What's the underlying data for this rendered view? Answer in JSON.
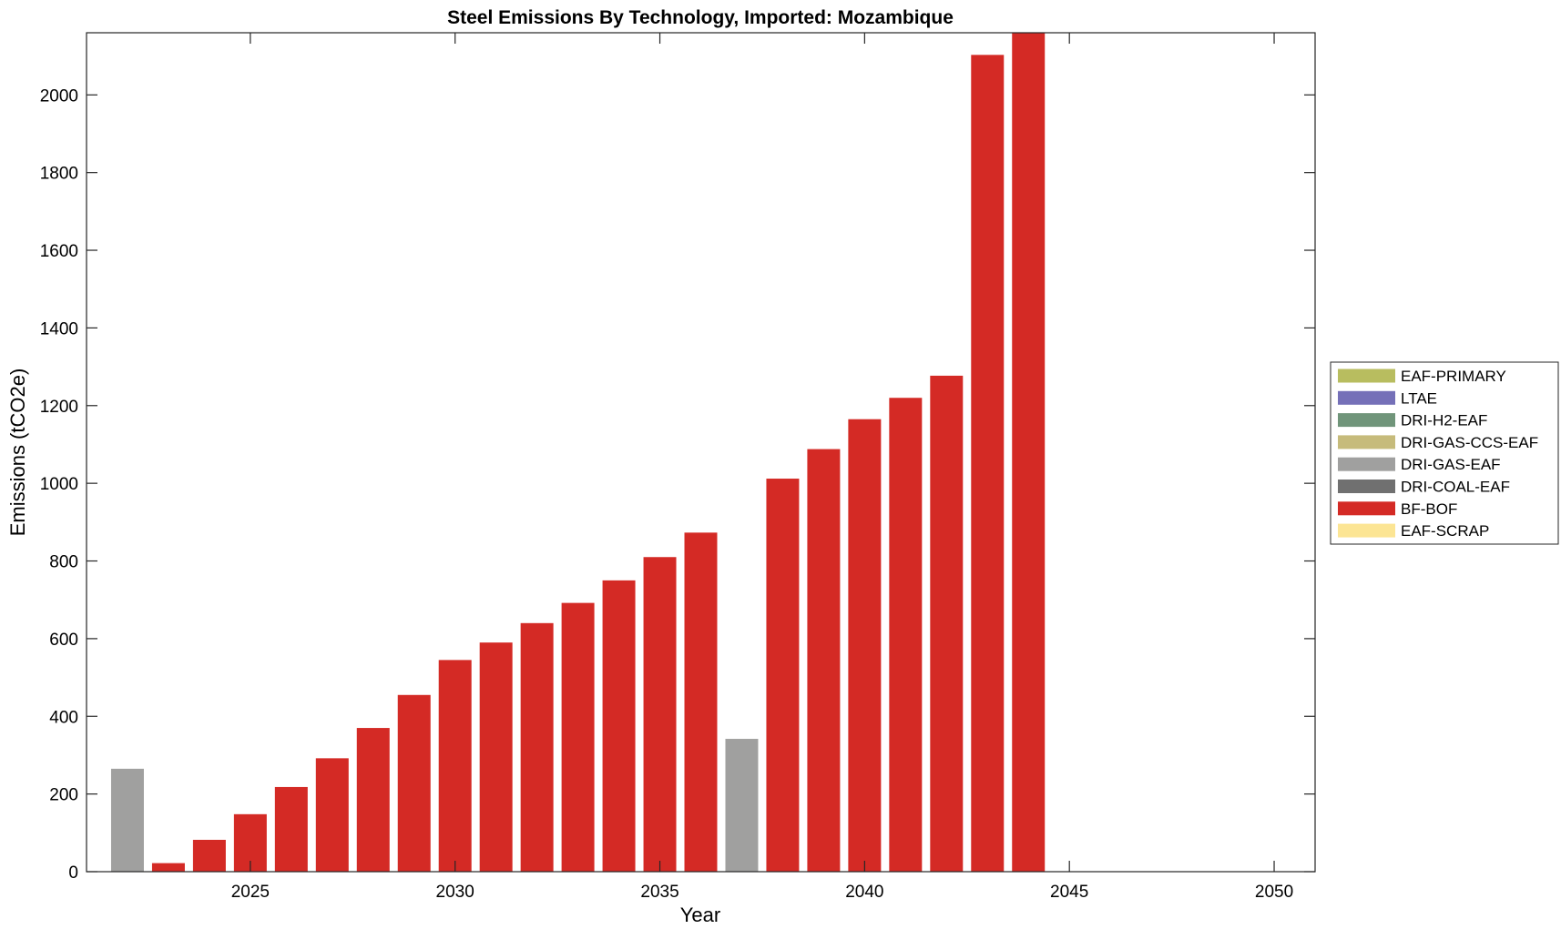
{
  "chart_data": {
    "type": "bar",
    "stacked": true,
    "title": "Steel Emissions By Technology, Imported: Mozambique",
    "xlabel": "Year",
    "ylabel": "Emissions (tCO2e)",
    "xlim": [
      2021,
      2051
    ],
    "ylim": [
      0,
      2160
    ],
    "xticks": [
      2025,
      2030,
      2035,
      2040,
      2045,
      2050
    ],
    "yticks": [
      0,
      200,
      400,
      600,
      800,
      1000,
      1200,
      1400,
      1600,
      1800,
      2000
    ],
    "grid": false,
    "legend_position": "outside-right",
    "x": [
      2022,
      2023,
      2024,
      2025,
      2026,
      2027,
      2028,
      2029,
      2030,
      2031,
      2032,
      2033,
      2034,
      2035,
      2036,
      2037,
      2038,
      2039,
      2040,
      2041,
      2042,
      2043,
      2044,
      2045,
      2046,
      2047,
      2048,
      2049,
      2050
    ],
    "series": [
      {
        "name": "EAF-PRIMARY",
        "color": "#b8bd5f",
        "values": [
          0,
          0,
          0,
          0,
          0,
          0,
          0,
          0,
          0,
          0,
          0,
          0,
          0,
          0,
          0,
          0,
          0,
          0,
          0,
          0,
          0,
          0,
          0,
          0,
          0,
          0,
          0,
          0,
          0
        ]
      },
      {
        "name": "LTAE",
        "color": "#7570b8",
        "values": [
          0,
          0,
          0,
          0,
          0,
          0,
          0,
          0,
          0,
          0,
          0,
          0,
          0,
          0,
          0,
          0,
          0,
          0,
          0,
          0,
          0,
          0,
          0,
          0,
          0,
          0,
          0,
          0,
          0
        ]
      },
      {
        "name": "DRI-H2-EAF",
        "color": "#70957a",
        "values": [
          0,
          0,
          0,
          0,
          0,
          0,
          0,
          0,
          0,
          0,
          0,
          0,
          0,
          0,
          0,
          0,
          0,
          0,
          0,
          0,
          0,
          0,
          0,
          0,
          0,
          0,
          0,
          0,
          0
        ]
      },
      {
        "name": "DRI-GAS-CCS-EAF",
        "color": "#c6bb7b",
        "values": [
          0,
          0,
          0,
          0,
          0,
          0,
          0,
          0,
          0,
          0,
          0,
          0,
          0,
          0,
          0,
          0,
          0,
          0,
          0,
          0,
          0,
          0,
          0,
          0,
          0,
          0,
          0,
          0,
          0
        ]
      },
      {
        "name": "DRI-GAS-EAF",
        "color": "#a0a09f",
        "values": [
          265,
          0,
          0,
          0,
          0,
          0,
          0,
          0,
          0,
          0,
          0,
          0,
          0,
          0,
          0,
          342,
          0,
          0,
          0,
          0,
          0,
          0,
          0,
          0,
          0,
          0,
          0,
          0,
          0
        ]
      },
      {
        "name": "DRI-COAL-EAF",
        "color": "#707070",
        "values": [
          0,
          0,
          0,
          0,
          0,
          0,
          0,
          0,
          0,
          0,
          0,
          0,
          0,
          0,
          0,
          0,
          0,
          0,
          0,
          0,
          0,
          0,
          0,
          0,
          0,
          0,
          0,
          0,
          0
        ]
      },
      {
        "name": "BF-BOF",
        "color": "#d42a25",
        "values": [
          0,
          22,
          82,
          148,
          218,
          292,
          370,
          455,
          545,
          590,
          640,
          692,
          750,
          810,
          873,
          0,
          1012,
          1088,
          1165,
          1220,
          1277,
          2103,
          2165,
          0,
          0,
          0,
          0,
          0,
          0
        ]
      },
      {
        "name": "EAF-SCRAP",
        "color": "#fce594",
        "values": [
          0,
          0,
          0,
          0,
          0,
          0,
          0,
          0,
          0,
          0,
          0,
          0,
          0,
          0,
          0,
          0,
          0,
          0,
          0,
          0,
          0,
          0,
          0,
          0,
          0,
          0,
          0,
          0,
          0
        ]
      }
    ]
  }
}
